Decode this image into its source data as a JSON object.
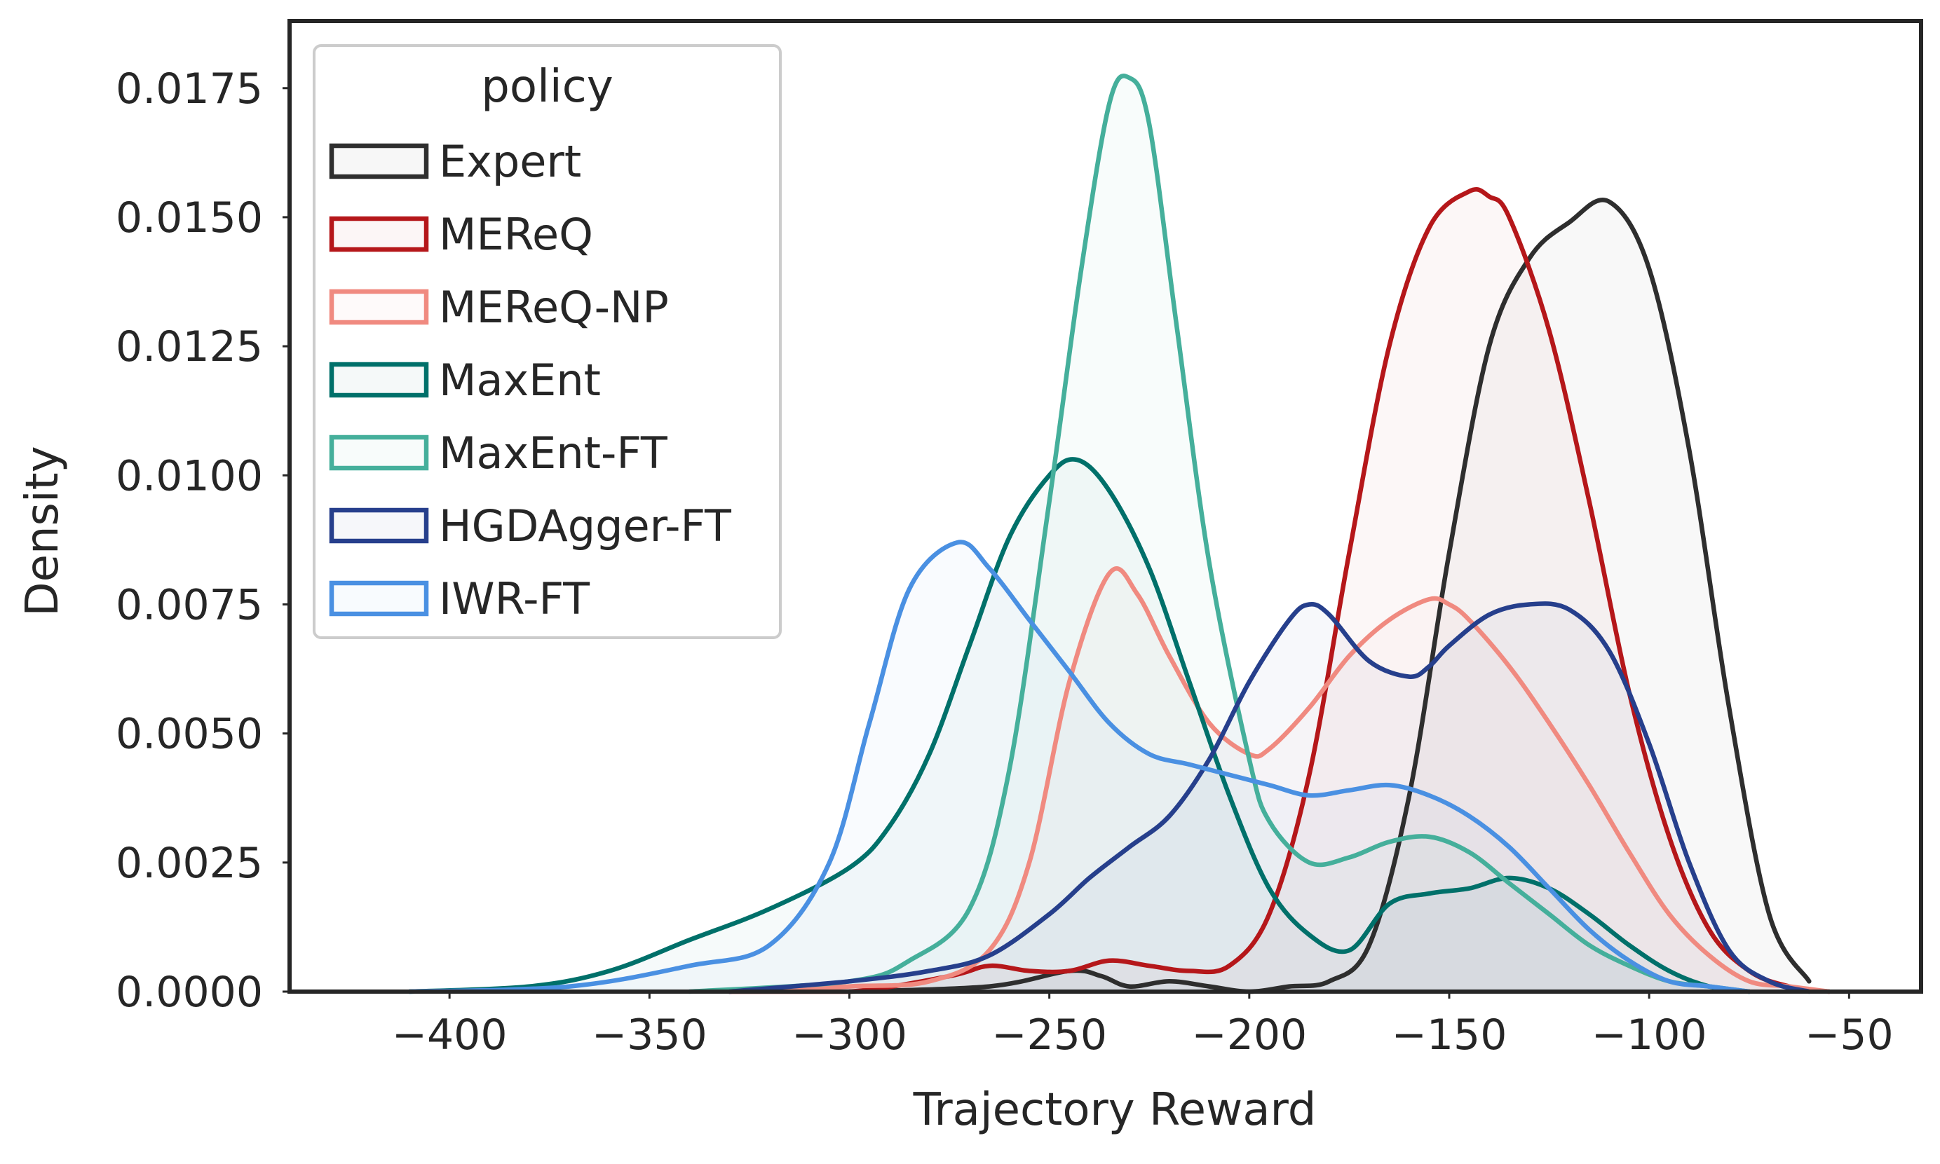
{
  "chart_data": {
    "type": "area",
    "subtype": "kde",
    "title": "",
    "xlabel": "Trajectory Reward",
    "ylabel": "Density",
    "xlim": [
      -440,
      -32
    ],
    "ylim": [
      0,
      0.0188
    ],
    "xticks": [
      -400,
      -350,
      -300,
      -250,
      -200,
      -150,
      -100,
      -50
    ],
    "xtick_labels": [
      "−400",
      "−350",
      "−300",
      "−250",
      "−200",
      "−150",
      "−100",
      "−50"
    ],
    "yticks": [
      0,
      0.0025,
      0.005,
      0.0075,
      0.01,
      0.0125,
      0.015,
      0.0175
    ],
    "ytick_labels": [
      "0.0000",
      "0.0025",
      "0.0050",
      "0.0075",
      "0.0100",
      "0.0125",
      "0.0150",
      "0.0175"
    ],
    "grid": false,
    "legend": {
      "title": "policy",
      "placement": "top-left"
    },
    "series": [
      {
        "name": "Expert",
        "color": "#2e2e2e",
        "x": [
          -300,
          -265,
          -245,
          -237,
          -230,
          -220,
          -210,
          -200,
          -190,
          -180,
          -170,
          -160,
          -150,
          -140,
          -130,
          -120,
          -110,
          -100,
          -90,
          -80,
          -70,
          -60
        ],
        "y": [
          0,
          0.0001,
          0.0004,
          0.0003,
          0.0001,
          0.0002,
          0.0001,
          0.0,
          0.0001,
          0.0002,
          0.0009,
          0.0038,
          0.0085,
          0.0125,
          0.0142,
          0.0149,
          0.0153,
          0.014,
          0.0105,
          0.0055,
          0.0015,
          0.0002
        ]
      },
      {
        "name": "MEReQ",
        "color": "#b5171a",
        "x": [
          -330,
          -300,
          -275,
          -265,
          -255,
          -245,
          -235,
          -225,
          -215,
          -205,
          -195,
          -185,
          -175,
          -165,
          -155,
          -145,
          -140,
          -135,
          -125,
          -115,
          -105,
          -95,
          -85,
          -75,
          -65,
          -55
        ],
        "y": [
          0,
          0.0,
          0.0003,
          0.0005,
          0.0004,
          0.0004,
          0.0006,
          0.0005,
          0.0004,
          0.0005,
          0.0015,
          0.0042,
          0.0085,
          0.0125,
          0.0148,
          0.0155,
          0.0154,
          0.015,
          0.0128,
          0.0095,
          0.0058,
          0.003,
          0.0012,
          0.0004,
          0.0001,
          0
        ]
      },
      {
        "name": "MEReQ-NP",
        "color": "#f08a80",
        "x": [
          -330,
          -300,
          -280,
          -265,
          -255,
          -245,
          -235,
          -228,
          -220,
          -210,
          -200,
          -195,
          -185,
          -175,
          -165,
          -155,
          -150,
          -145,
          -135,
          -125,
          -115,
          -105,
          -95,
          -85,
          -75,
          -65,
          -55
        ],
        "y": [
          0,
          0.0001,
          0.0002,
          0.0008,
          0.0025,
          0.006,
          0.0081,
          0.0077,
          0.0065,
          0.0052,
          0.0046,
          0.0047,
          0.0055,
          0.0065,
          0.0072,
          0.0076,
          0.0075,
          0.0072,
          0.0063,
          0.0052,
          0.004,
          0.0027,
          0.0015,
          0.0007,
          0.0002,
          0.0001,
          0
        ]
      },
      {
        "name": "MaxEnt",
        "color": "#00706a",
        "x": [
          -410,
          -380,
          -360,
          -340,
          -320,
          -300,
          -290,
          -280,
          -270,
          -260,
          -250,
          -243,
          -235,
          -225,
          -215,
          -205,
          -195,
          -185,
          -175,
          -165,
          -155,
          -145,
          -135,
          -125,
          -115,
          -105,
          -95,
          -85,
          -75
        ],
        "y": [
          0,
          0.0001,
          0.0004,
          0.001,
          0.0016,
          0.0024,
          0.0032,
          0.0046,
          0.0067,
          0.0088,
          0.01,
          0.0103,
          0.0097,
          0.0082,
          0.006,
          0.0038,
          0.002,
          0.0011,
          0.0008,
          0.0017,
          0.0019,
          0.002,
          0.0022,
          0.002,
          0.0015,
          0.0009,
          0.0004,
          0.0001,
          0
        ]
      },
      {
        "name": "MaxEnt-FT",
        "color": "#45af9b",
        "x": [
          -340,
          -300,
          -285,
          -270,
          -260,
          -250,
          -242,
          -235,
          -230,
          -225,
          -218,
          -210,
          -200,
          -195,
          -185,
          -175,
          -165,
          -155,
          -145,
          -135,
          -125,
          -115,
          -105,
          -95,
          -85,
          -75
        ],
        "y": [
          0,
          0.0002,
          0.0006,
          0.0016,
          0.0043,
          0.0095,
          0.014,
          0.0172,
          0.0177,
          0.0168,
          0.0128,
          0.0083,
          0.0045,
          0.0033,
          0.0025,
          0.0026,
          0.0029,
          0.003,
          0.0027,
          0.0021,
          0.0015,
          0.0009,
          0.0005,
          0.0002,
          0.0001,
          0
        ]
      },
      {
        "name": "HGDAgger-FT",
        "color": "#263f8c",
        "x": [
          -330,
          -300,
          -280,
          -265,
          -250,
          -240,
          -230,
          -220,
          -210,
          -200,
          -190,
          -185,
          -180,
          -170,
          -160,
          -155,
          -150,
          -140,
          -130,
          -120,
          -110,
          -100,
          -90,
          -80,
          -70,
          -60
        ],
        "y": [
          0,
          0.0002,
          0.0004,
          0.0007,
          0.0015,
          0.0022,
          0.0028,
          0.0034,
          0.0045,
          0.006,
          0.0072,
          0.0075,
          0.0073,
          0.0064,
          0.0061,
          0.0063,
          0.0067,
          0.0073,
          0.0075,
          0.0074,
          0.0066,
          0.0048,
          0.0025,
          0.0008,
          0.0002,
          0
        ]
      },
      {
        "name": "IWR-FT",
        "color": "#4a90e2",
        "x": [
          -410,
          -370,
          -340,
          -320,
          -305,
          -295,
          -285,
          -273,
          -265,
          -255,
          -245,
          -235,
          -225,
          -215,
          -205,
          -195,
          -185,
          -175,
          -165,
          -155,
          -145,
          -135,
          -125,
          -115,
          -105,
          -95,
          -85,
          -75
        ],
        "y": [
          0,
          0.0001,
          0.0005,
          0.0009,
          0.0025,
          0.0052,
          0.0078,
          0.0087,
          0.0082,
          0.0072,
          0.0062,
          0.0052,
          0.0046,
          0.0044,
          0.0042,
          0.004,
          0.0038,
          0.0039,
          0.004,
          0.0038,
          0.0034,
          0.0028,
          0.002,
          0.0012,
          0.0006,
          0.0002,
          0.0001,
          0
        ]
      }
    ]
  }
}
